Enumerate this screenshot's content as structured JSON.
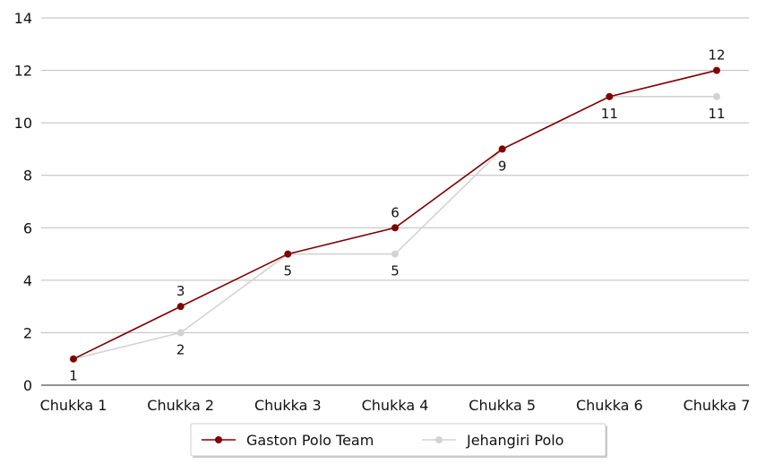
{
  "chart_data": {
    "type": "line",
    "categories": [
      "Chukka 1",
      "Chukka 2",
      "Chukka 3",
      "Chukka 4",
      "Chukka 5",
      "Chukka 6",
      "Chukka 7"
    ],
    "series": [
      {
        "name": "Gaston Polo Team",
        "color": "#800000",
        "values": [
          1,
          3,
          5,
          6,
          9,
          11,
          12
        ]
      },
      {
        "name": "Jehangiri Polo",
        "color": "#d3d3d3",
        "values": [
          1,
          2,
          5,
          5,
          9,
          11,
          11
        ]
      }
    ],
    "ylim": [
      0,
      14
    ],
    "yticks": [
      0,
      2,
      4,
      6,
      8,
      10,
      12,
      14
    ],
    "xlabel": "",
    "ylabel": "",
    "grid": "horizontal",
    "legend": "bottom-center"
  }
}
